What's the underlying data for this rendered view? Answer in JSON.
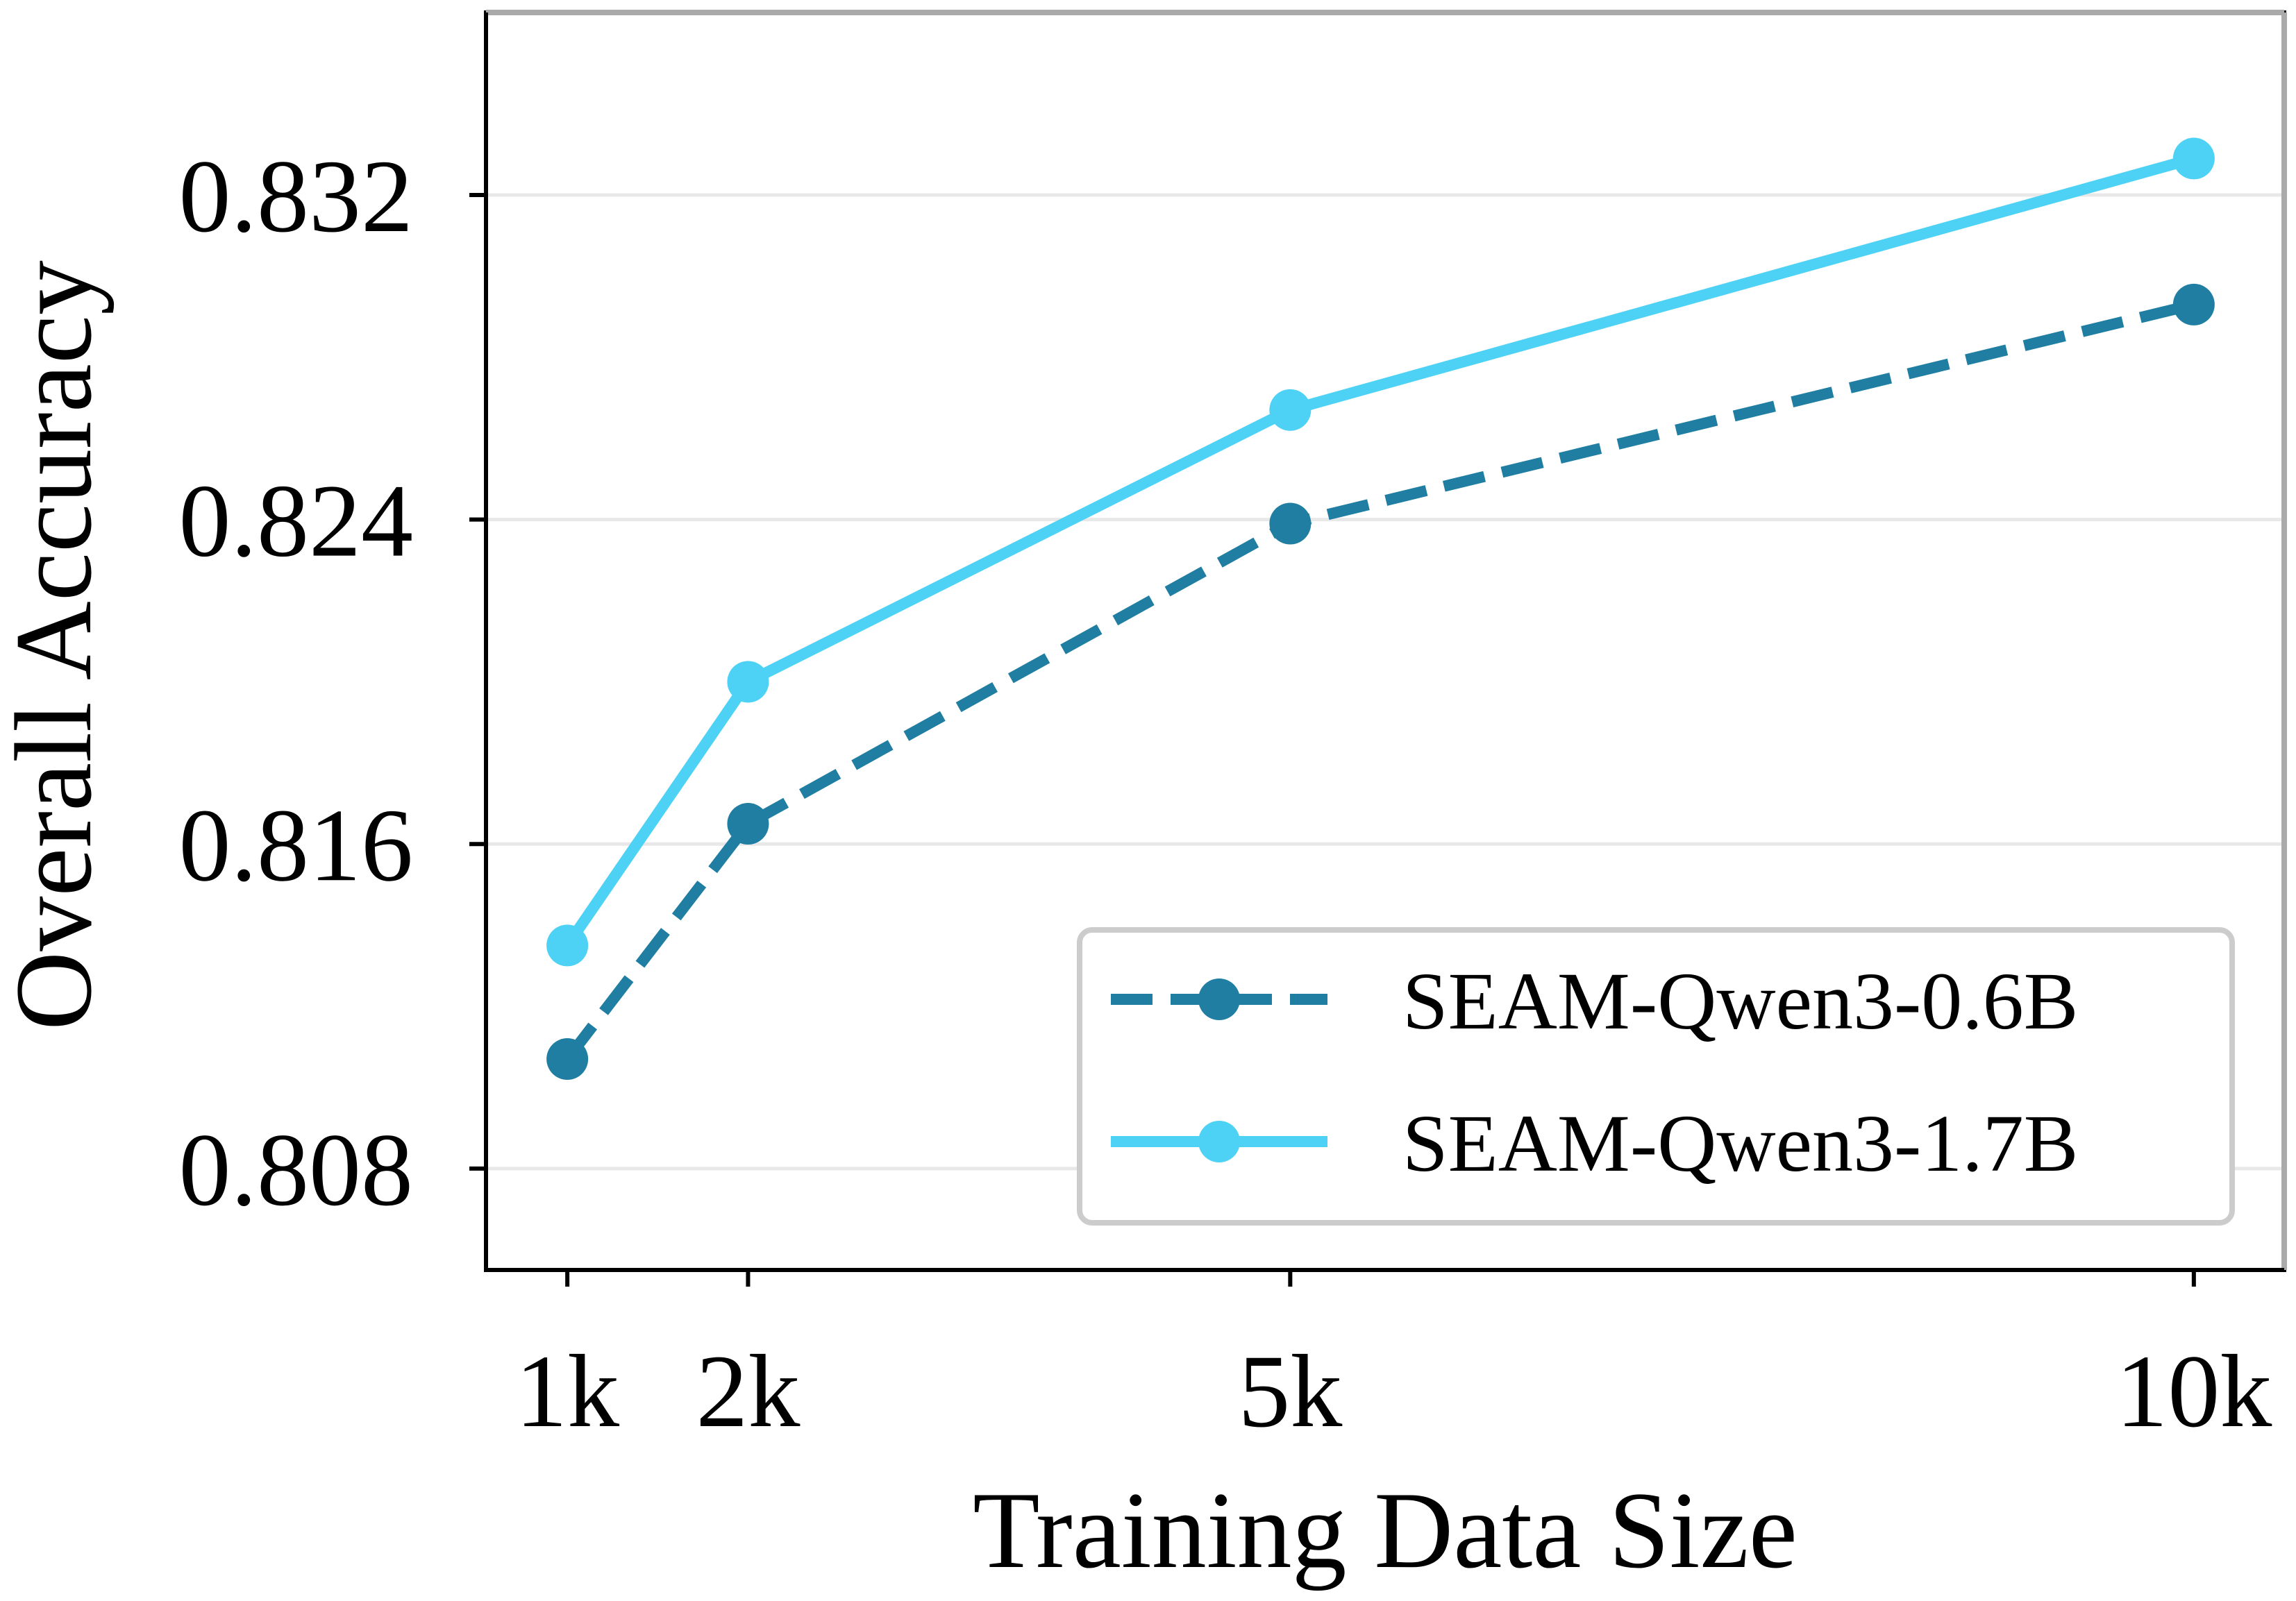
{
  "chart_data": {
    "type": "line",
    "title": "",
    "xlabel": "Training Data Size",
    "ylabel": "Overall Accuracy",
    "x": [
      1,
      2,
      5,
      10
    ],
    "x_tick_labels": [
      "1k",
      "2k",
      "5k",
      "10k"
    ],
    "xlim": [
      0.55,
      10.5
    ],
    "y_ticks": [
      0.808,
      0.816,
      0.824,
      0.832
    ],
    "y_tick_labels": [
      "0.808",
      "0.816",
      "0.824",
      "0.832"
    ],
    "ylim": [
      0.8055,
      0.8365
    ],
    "grid": "horizontal",
    "legend_position": "lower-right",
    "series": [
      {
        "name": "SEAM-Qwen3-0.6B",
        "values": [
          0.8107,
          0.8165,
          0.8239,
          0.8293
        ],
        "color": "#1f7ea1",
        "line_style": "dashed",
        "marker": "circle"
      },
      {
        "name": "SEAM-Qwen3-1.7B",
        "values": [
          0.8135,
          0.82,
          0.8267,
          0.8329
        ],
        "color": "#4dd2f5",
        "line_style": "solid",
        "marker": "circle"
      }
    ]
  }
}
